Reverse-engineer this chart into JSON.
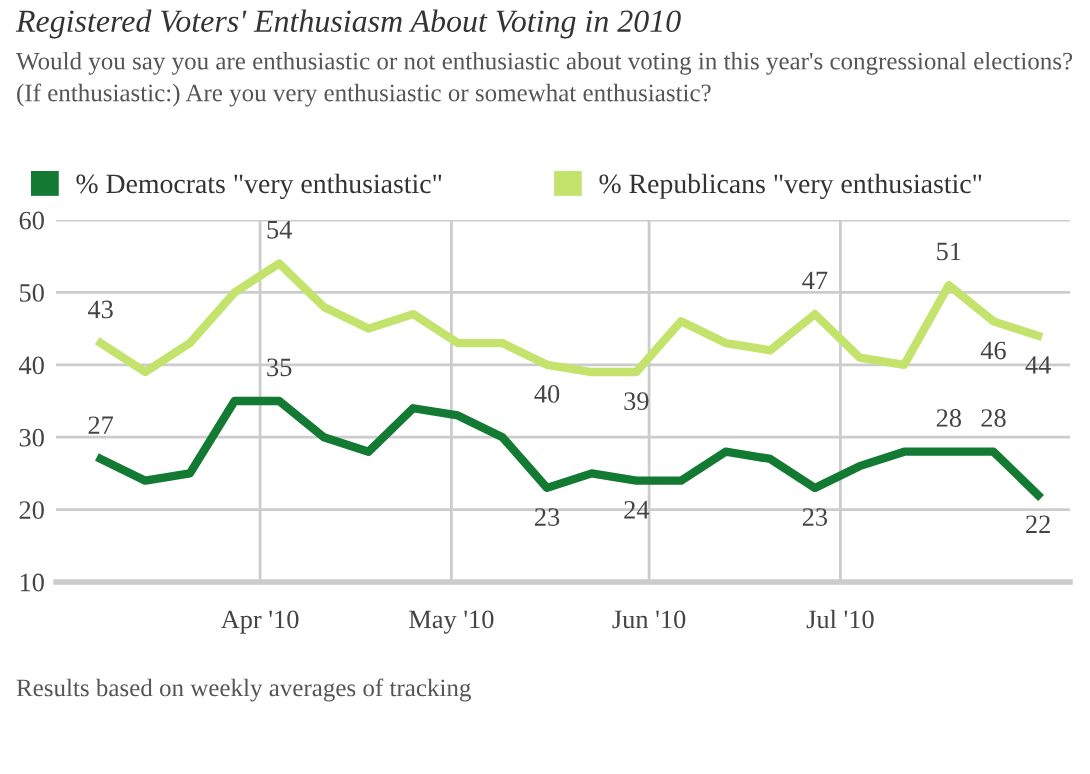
{
  "chart_data": {
    "type": "line",
    "title": "Registered Voters' Enthusiasm About Voting in 2010",
    "subtitle": "Would you say you are enthusiastic or not enthusiastic about voting in this year's congressional elections? (If enthusiastic:) Are you very enthusiastic or somewhat enthusiastic?",
    "x": [
      "2010-03-07",
      "2010-03-14",
      "2010-03-21",
      "2010-03-28",
      "2010-04-04",
      "2010-04-11",
      "2010-04-18",
      "2010-04-25",
      "2010-05-02",
      "2010-05-09",
      "2010-05-16",
      "2010-05-23",
      "2010-05-30",
      "2010-06-06",
      "2010-06-13",
      "2010-06-20",
      "2010-06-27",
      "2010-07-04",
      "2010-07-11",
      "2010-07-18",
      "2010-07-25",
      "2010-08-01"
    ],
    "series": [
      {
        "name": "% Democrats \"very enthusiastic\"",
        "color": "#127a33",
        "values": [
          27,
          24,
          25,
          35,
          35,
          30,
          28,
          34,
          33,
          30,
          23,
          25,
          24,
          24,
          28,
          27,
          23,
          26,
          28,
          28,
          28,
          22
        ],
        "value_labels": [
          "27",
          null,
          null,
          null,
          "35",
          null,
          null,
          null,
          null,
          null,
          "23",
          null,
          "24",
          null,
          null,
          null,
          "23",
          null,
          null,
          "28",
          "28",
          "22"
        ]
      },
      {
        "name": "% Republicans \"very enthusiastic\"",
        "color": "#c3e36c",
        "values": [
          43,
          39,
          43,
          50,
          54,
          48,
          45,
          47,
          43,
          43,
          40,
          39,
          39,
          46,
          43,
          42,
          47,
          41,
          40,
          51,
          46,
          44
        ],
        "value_labels": [
          "43",
          null,
          null,
          null,
          "54",
          null,
          null,
          null,
          null,
          null,
          "40",
          null,
          "39",
          null,
          null,
          null,
          "47",
          null,
          null,
          "51",
          "46",
          "44"
        ]
      }
    ],
    "xlim": [
      "2010-02-28",
      "2010-08-06"
    ],
    "xticks": [
      {
        "value": "2010-04-01",
        "label": "Apr '10"
      },
      {
        "value": "2010-05-01",
        "label": "May '10"
      },
      {
        "value": "2010-06-01",
        "label": "Jun '10"
      },
      {
        "value": "2010-07-01",
        "label": "Jul '10"
      }
    ],
    "ylim": [
      10,
      60
    ],
    "yticks": [
      10,
      20,
      30,
      40,
      50,
      60
    ],
    "grid": true,
    "legend": "top left",
    "marker": "none",
    "line_style": "solid",
    "annotations": [
      "Results based on weekly averages of tracking"
    ]
  }
}
